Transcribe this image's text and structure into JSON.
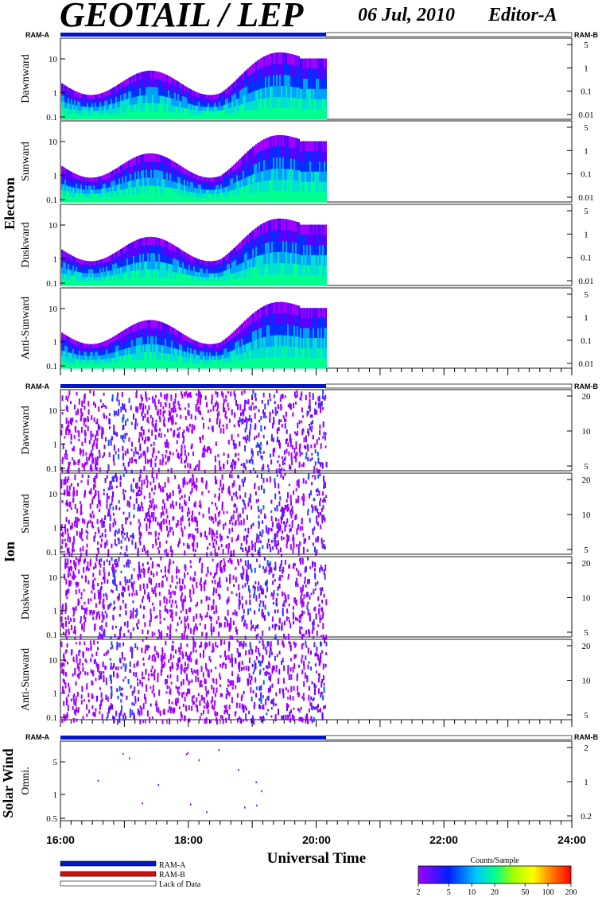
{
  "header": {
    "title": "GEOTAIL / LEP",
    "date": "06 Jul, 2010",
    "editor": "Editor-A"
  },
  "chart_data": {
    "type": "heatmap",
    "time_axis": {
      "label": "Universal Time",
      "range_hours": [
        16,
        24
      ],
      "tick_labels": [
        "16:00",
        "18:00",
        "20:00",
        "22:00",
        "24:00"
      ],
      "data_end_hour": 20.15
    },
    "ram_labels": {
      "left": "RAM-A",
      "right": "RAM-B"
    },
    "groups": [
      {
        "name": "Electron",
        "panels": [
          {
            "name": "Dawnward",
            "y_ticks": [
              "10",
              "1",
              "0.1"
            ],
            "right_ticks": [
              "5",
              "1",
              "0.1",
              "0.01"
            ]
          },
          {
            "name": "Sunward",
            "y_ticks": [
              "10",
              "1",
              "0.1"
            ],
            "right_ticks": [
              "5",
              "1",
              "0.1",
              "0.01"
            ]
          },
          {
            "name": "Duskward",
            "y_ticks": [
              "10",
              "1",
              "0.1"
            ],
            "right_ticks": [
              "5",
              "1",
              "0.1",
              "0.01"
            ]
          },
          {
            "name": "Anti-Sunward",
            "y_ticks": [
              "10",
              "1",
              "0.1"
            ],
            "right_ticks": [
              "5",
              "1",
              "0.1",
              "0.01"
            ]
          }
        ]
      },
      {
        "name": "Ion",
        "panels": [
          {
            "name": "Dawnward",
            "y_ticks": [
              "10",
              "1",
              "0.1"
            ],
            "right_ticks": [
              "20",
              "10",
              "5"
            ]
          },
          {
            "name": "Sunward",
            "y_ticks": [
              "10",
              "1",
              "0.1"
            ],
            "right_ticks": [
              "20",
              "10",
              "5"
            ]
          },
          {
            "name": "Duskward",
            "y_ticks": [
              "10",
              "1",
              "0.1"
            ],
            "right_ticks": [
              "20",
              "10",
              "5"
            ]
          },
          {
            "name": "Anti-Sunward",
            "y_ticks": [
              "10",
              "1",
              "0.1"
            ],
            "right_ticks": [
              "20",
              "10",
              "5"
            ]
          }
        ]
      },
      {
        "name": "Solar Wind",
        "panels": [
          {
            "name": "Omni.",
            "y_ticks": [
              "5",
              "1",
              "0.5"
            ],
            "right_ticks": [
              "2",
              "1",
              "0.2"
            ]
          }
        ]
      }
    ],
    "legend": [
      {
        "label": "RAM-A",
        "color": "#0018c8"
      },
      {
        "label": "RAM-B",
        "color": "#d01010"
      },
      {
        "label": "Lack of Data",
        "color": "#ffffff"
      }
    ],
    "colorbar": {
      "title": "Counts/Sample",
      "ticks": [
        "2",
        "5",
        "10",
        "20",
        "50",
        "100",
        "200"
      ]
    }
  }
}
